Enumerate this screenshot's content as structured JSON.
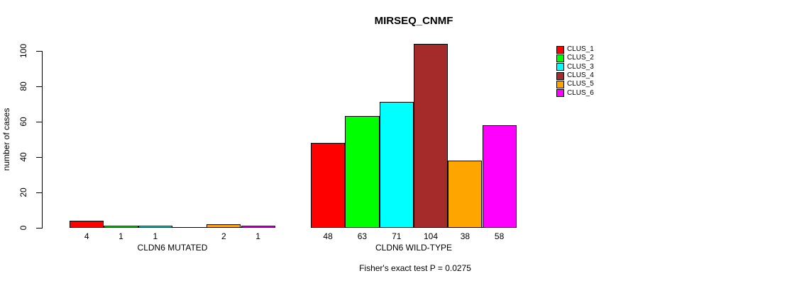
{
  "chart_data": {
    "type": "bar",
    "title": "MIRSEQ_CNMF",
    "ylabel": "number of cases",
    "ylim": [
      0,
      100
    ],
    "yticks": [
      0,
      20,
      40,
      60,
      80,
      100
    ],
    "grid": false,
    "legend_position": "right",
    "clusters": [
      {
        "name": "CLUS_1",
        "color": "#ff0000"
      },
      {
        "name": "CLUS_2",
        "color": "#00ff00"
      },
      {
        "name": "CLUS_3",
        "color": "#00ffff"
      },
      {
        "name": "CLUS_4",
        "color": "#a52a2a"
      },
      {
        "name": "CLUS_5",
        "color": "#ffa500"
      },
      {
        "name": "CLUS_6",
        "color": "#ff00ff"
      }
    ],
    "groups": [
      {
        "label": "CLDN6 MUTATED",
        "values": [
          4,
          1,
          1,
          0,
          2,
          1
        ]
      },
      {
        "label": "CLDN6 WILD-TYPE",
        "values": [
          48,
          63,
          71,
          104,
          38,
          58
        ]
      }
    ],
    "footer": "Fisher's exact test P = 0.0275"
  }
}
